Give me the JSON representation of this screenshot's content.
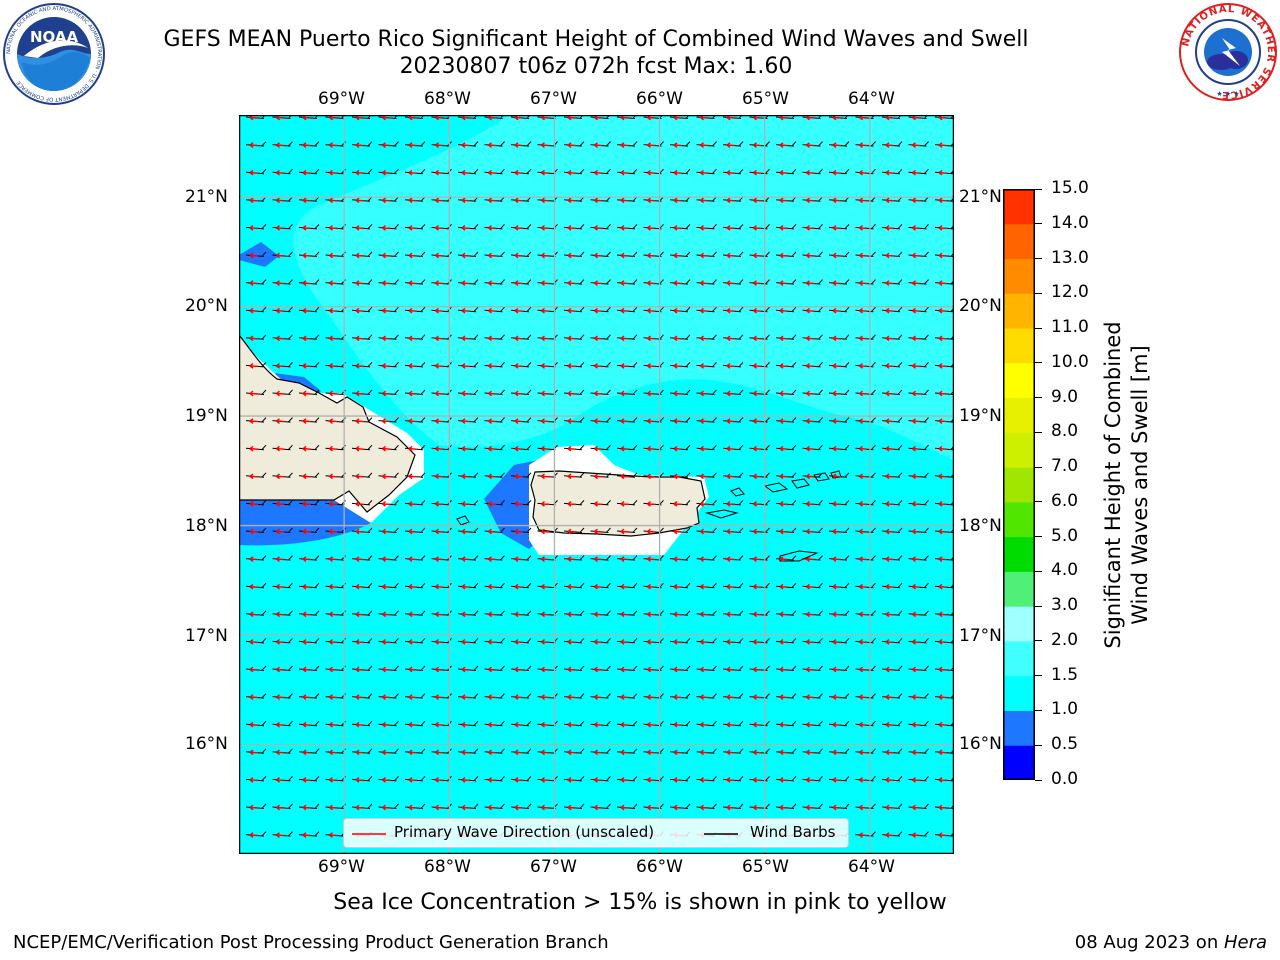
{
  "header": {
    "title_line1": "GEFS MEAN Puerto Rico Significant Height of Combined Wind Waves and Swell",
    "title_line2": "20230807 t06z 072h fcst   Max: 1.60"
  },
  "logos": {
    "left": {
      "name": "noaa-logo",
      "text": "NOAA",
      "ring_text": "NATIONAL OCEANIC AND ATMOSPHERIC ADMINISTRATION · U.S. DEPARTMENT OF COMMERCE"
    },
    "right": {
      "name": "nws-logo",
      "ring_text": "NATIONAL WEATHER SERVICE"
    }
  },
  "map": {
    "lon_labels_top": [
      "69°W",
      "68°W",
      "67°W",
      "66°W",
      "65°W",
      "64°W"
    ],
    "lon_labels_bottom": [
      "69°W",
      "68°W",
      "67°W",
      "66°W",
      "65°W",
      "64°W"
    ],
    "lat_labels_left": [
      "21°N",
      "20°N",
      "19°N",
      "18°N",
      "17°N",
      "16°N"
    ],
    "lat_labels_right": [
      "21°N",
      "20°N",
      "19°N",
      "18°N",
      "17°N",
      "16°N"
    ],
    "extent": {
      "lon_min": -70.0,
      "lon_max": -63.2,
      "lat_min": 15.0,
      "lat_max": 21.75
    },
    "ocean_color": "#00ffff",
    "land_color": "#efecdc",
    "legend": {
      "primary_wave": "Primary Wave Direction (unscaled)",
      "wind_barbs": "Wind Barbs",
      "primary_wave_color": "#ff0000",
      "wind_barbs_color": "#000000"
    }
  },
  "colorbar": {
    "label_line1": "Significant Height of Combined",
    "label_line2": "Wind Waves and Swell [m]",
    "levels": [
      "0.0",
      "0.5",
      "1.0",
      "1.5",
      "2.0",
      "3.0",
      "4.0",
      "5.0",
      "6.0",
      "7.0",
      "8.0",
      "9.0",
      "10.0",
      "11.0",
      "12.0",
      "13.0",
      "14.0",
      "15.0"
    ],
    "colors": [
      "#0000ff",
      "#1e78ff",
      "#00ffff",
      "#40ffff",
      "#a0ffff",
      "#50f078",
      "#00dc00",
      "#50e600",
      "#a0e600",
      "#cdf000",
      "#e6f000",
      "#ffff00",
      "#ffdc00",
      "#ffb400",
      "#ff8c00",
      "#ff6400",
      "#ff3200"
    ]
  },
  "footer": {
    "note": "Sea Ice Concentration > 15% is shown in pink to yellow",
    "branch": "NCEP/EMC/Verification Post Processing Product Generation Branch",
    "date_prefix": "08 Aug 2023 on ",
    "host": "Hera"
  }
}
